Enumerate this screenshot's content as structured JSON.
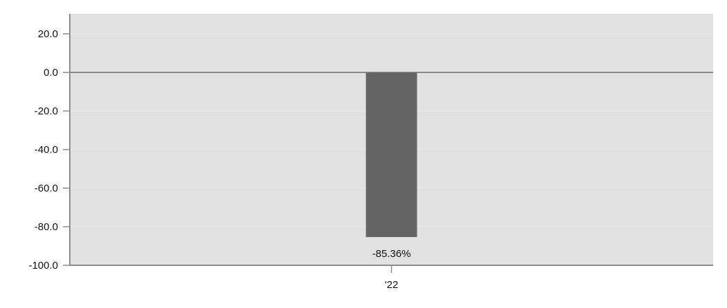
{
  "chart_data": {
    "type": "bar",
    "title": "",
    "xlabel": "",
    "ylabel": "",
    "categories": [
      "'22"
    ],
    "values": [
      -85.36
    ],
    "data_labels": [
      "-85.36%"
    ],
    "ylim": [
      -100,
      30.4
    ],
    "yticks": [
      20,
      0,
      -20,
      -40,
      -60,
      -80,
      -100
    ],
    "ytick_labels": [
      "20.0",
      "0.0",
      "-20.0",
      "-40.0",
      "-60.0",
      "-80.0",
      "-100.0"
    ],
    "grid": true,
    "legend": "none",
    "colors": {
      "bar": "#646464",
      "plot_background": "#e1e1e1",
      "gridline": "#ebebeb",
      "zero_line": "#6e6e6e",
      "axis": "#8c8c8c"
    }
  }
}
